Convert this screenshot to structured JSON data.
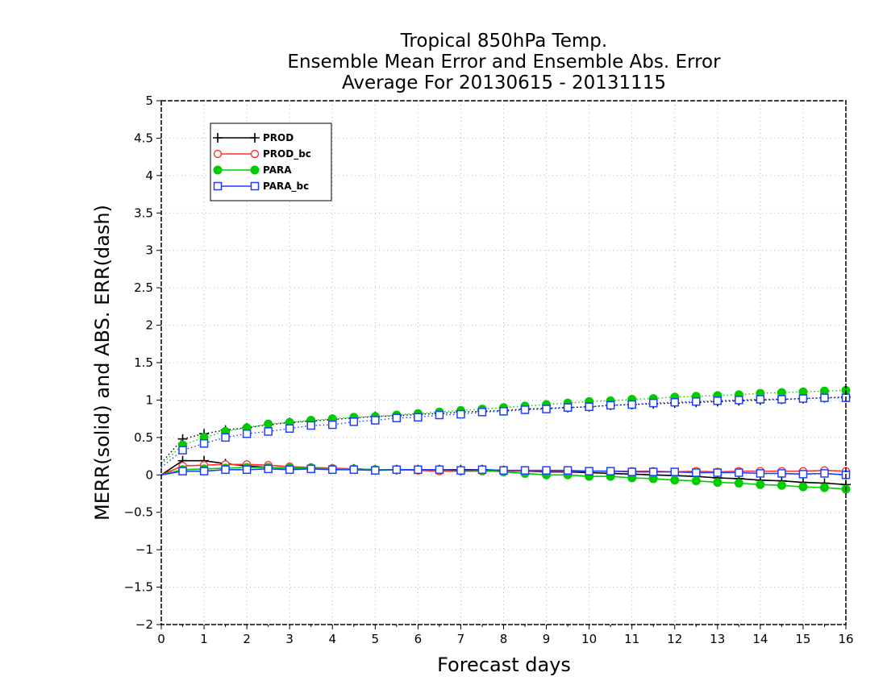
{
  "chart_data": {
    "type": "line",
    "title_lines": [
      "Tropical 850hPa Temp.",
      "Ensemble Mean Error and Ensemble Abs. Error",
      "Average For 20130615 - 20131115"
    ],
    "xlabel": "Forecast days",
    "ylabel": "MERR(solid) and ABS. ERR(dash)",
    "xlim": [
      0,
      16
    ],
    "ylim": [
      -2,
      5
    ],
    "x_ticks": [
      0,
      1,
      2,
      3,
      4,
      5,
      6,
      7,
      8,
      9,
      10,
      11,
      12,
      13,
      14,
      15,
      16
    ],
    "y_ticks": [
      -2,
      -1.5,
      -1,
      -0.5,
      0,
      0.5,
      1,
      1.5,
      2,
      2.5,
      3,
      3.5,
      4,
      4.5,
      5
    ],
    "y_tick_labels": [
      "−2",
      "−1.5",
      "−1",
      "−0.5",
      "0",
      "0.5",
      "1",
      "1.5",
      "2",
      "2.5",
      "3",
      "3.5",
      "4",
      "4.5",
      "5"
    ],
    "grid": true,
    "legend_position": "top-left",
    "x": [
      0,
      0.5,
      1,
      1.5,
      2,
      2.5,
      3,
      3.5,
      4,
      4.5,
      5,
      5.5,
      6,
      6.5,
      7,
      7.5,
      8,
      8.5,
      9,
      9.5,
      10,
      10.5,
      11,
      11.5,
      12,
      12.5,
      13,
      13.5,
      14,
      14.5,
      15,
      15.5,
      16
    ],
    "series": [
      {
        "name": "PROD",
        "color": "#000000",
        "marker": "plus",
        "merr": [
          0,
          0.19,
          0.19,
          0.15,
          0.12,
          0.1,
          0.09,
          0.09,
          0.08,
          0.08,
          0.07,
          0.07,
          0.07,
          0.07,
          0.07,
          0.07,
          0.06,
          0.05,
          0.04,
          0.04,
          0.03,
          0.02,
          0.01,
          0.0,
          -0.01,
          -0.02,
          -0.04,
          -0.05,
          -0.07,
          -0.08,
          -0.1,
          -0.11,
          -0.13
        ],
        "abs_err": [
          0.16,
          0.48,
          0.55,
          0.6,
          0.63,
          0.67,
          0.7,
          0.72,
          0.74,
          0.76,
          0.78,
          0.79,
          0.81,
          0.82,
          0.84,
          0.85,
          0.86,
          0.88,
          0.89,
          0.9,
          0.91,
          0.93,
          0.94,
          0.95,
          0.96,
          0.97,
          0.98,
          0.99,
          1.0,
          1.01,
          1.02,
          1.03,
          1.04
        ]
      },
      {
        "name": "PROD_bc",
        "color": "#ff3030",
        "marker": "open-circle",
        "merr": [
          0,
          0.12,
          0.13,
          0.14,
          0.14,
          0.13,
          0.11,
          0.1,
          0.09,
          0.08,
          0.07,
          0.07,
          0.06,
          0.05,
          0.05,
          0.05,
          0.05,
          0.05,
          0.05,
          0.05,
          0.05,
          0.05,
          0.05,
          0.05,
          0.04,
          0.05,
          0.04,
          0.05,
          0.05,
          0.05,
          0.05,
          0.06,
          0.05
        ]
      },
      {
        "name": "PARA",
        "color": "#00cc00",
        "marker": "filled-circle",
        "merr": [
          0,
          0.07,
          0.08,
          0.09,
          0.1,
          0.1,
          0.09,
          0.09,
          0.08,
          0.08,
          0.07,
          0.07,
          0.07,
          0.07,
          0.06,
          0.06,
          0.04,
          0.02,
          0.0,
          0.0,
          -0.02,
          -0.02,
          -0.04,
          -0.05,
          -0.07,
          -0.08,
          -0.1,
          -0.11,
          -0.13,
          -0.14,
          -0.16,
          -0.17,
          -0.19
        ],
        "abs_err": [
          0.14,
          0.4,
          0.5,
          0.58,
          0.63,
          0.68,
          0.7,
          0.73,
          0.75,
          0.77,
          0.78,
          0.8,
          0.82,
          0.84,
          0.86,
          0.88,
          0.9,
          0.92,
          0.94,
          0.96,
          0.98,
          0.99,
          1.01,
          1.02,
          1.04,
          1.05,
          1.06,
          1.07,
          1.09,
          1.1,
          1.11,
          1.12,
          1.13
        ]
      },
      {
        "name": "PARA_bc",
        "color": "#1f3fff",
        "marker": "open-square",
        "merr": [
          0,
          0.05,
          0.05,
          0.07,
          0.07,
          0.08,
          0.07,
          0.08,
          0.07,
          0.07,
          0.06,
          0.07,
          0.07,
          0.07,
          0.06,
          0.07,
          0.06,
          0.06,
          0.06,
          0.06,
          0.05,
          0.05,
          0.04,
          0.04,
          0.04,
          0.03,
          0.03,
          0.03,
          0.02,
          0.02,
          0.01,
          0.02,
          0.0
        ],
        "abs_err": [
          0.1,
          0.33,
          0.42,
          0.5,
          0.55,
          0.58,
          0.62,
          0.66,
          0.67,
          0.71,
          0.73,
          0.76,
          0.77,
          0.8,
          0.81,
          0.84,
          0.85,
          0.87,
          0.88,
          0.9,
          0.91,
          0.93,
          0.94,
          0.96,
          0.97,
          0.98,
          0.99,
          1.0,
          1.01,
          1.01,
          1.02,
          1.03,
          1.03
        ]
      }
    ]
  }
}
